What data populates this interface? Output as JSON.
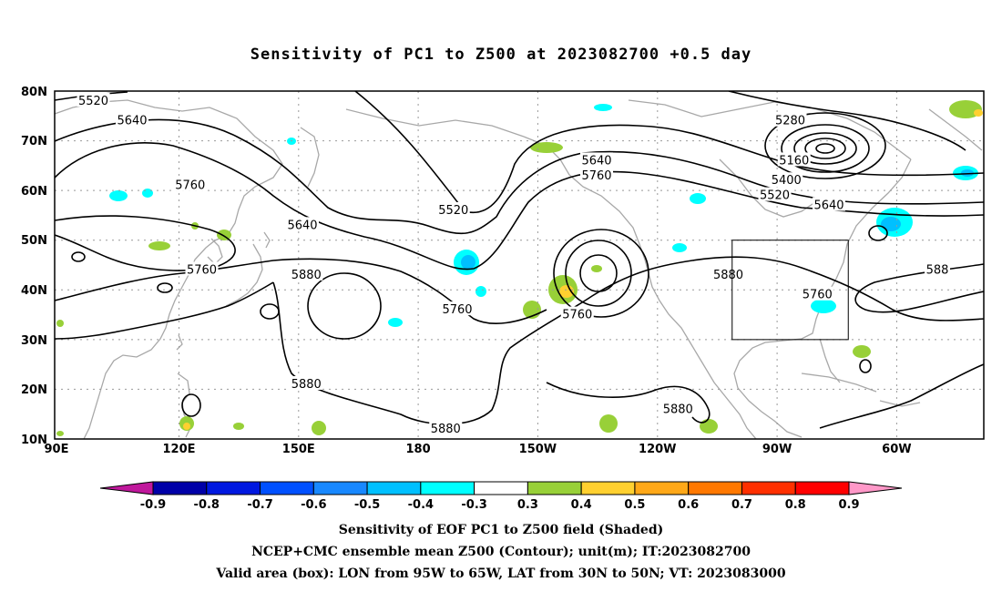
{
  "title": "Sensitivity of PC1 to Z500 at 2023082700 +0.5 day",
  "lat_ticks": [
    "80N",
    "70N",
    "60N",
    "50N",
    "40N",
    "30N",
    "20N",
    "10N"
  ],
  "lon_ticks": [
    "90E",
    "120E",
    "150E",
    "180",
    "150W",
    "120W",
    "90W",
    "60W"
  ],
  "contour_labels": [
    {
      "text": "5520",
      "lon": 100,
      "lat": 78
    },
    {
      "text": "5640",
      "lon": 110,
      "lat": 74
    },
    {
      "text": "5760",
      "lon": 125,
      "lat": 61
    },
    {
      "text": "5640",
      "lon": 154,
      "lat": 53
    },
    {
      "text": "5760",
      "lon": 128,
      "lat": 44
    },
    {
      "text": "5880",
      "lon": 155,
      "lat": 43
    },
    {
      "text": "5520",
      "lon": 193,
      "lat": 56
    },
    {
      "text": "5640",
      "lon": 230,
      "lat": 66
    },
    {
      "text": "5760",
      "lon": 230,
      "lat": 63
    },
    {
      "text": "5760",
      "lon": 194,
      "lat": 36
    },
    {
      "text": "5760",
      "lon": 225,
      "lat": 35
    },
    {
      "text": "5880",
      "lon": 264,
      "lat": 43
    },
    {
      "text": "5280",
      "lon": 280,
      "lat": 74
    },
    {
      "text": "5160",
      "lon": 281,
      "lat": 66
    },
    {
      "text": "5400",
      "lon": 279,
      "lat": 62
    },
    {
      "text": "5520",
      "lon": 276,
      "lat": 59
    },
    {
      "text": "5640",
      "lon": 290,
      "lat": 57
    },
    {
      "text": "5760",
      "lon": 287,
      "lat": 39
    },
    {
      "text": "588",
      "lon": 318,
      "lat": 44
    },
    {
      "text": "5880",
      "lon": 155,
      "lat": 21
    },
    {
      "text": "5880",
      "lon": 191,
      "lat": 12
    },
    {
      "text": "5880",
      "lon": 251,
      "lat": 16
    }
  ],
  "valid_box": {
    "lon_min": 265,
    "lon_max": 295,
    "lat_min": 30,
    "lat_max": 50
  },
  "colorbar": {
    "labels": [
      "-0.9",
      "-0.8",
      "-0.7",
      "-0.6",
      "-0.5",
      "-0.4",
      "-0.3",
      "0.3",
      "0.4",
      "0.5",
      "0.6",
      "0.7",
      "0.8",
      "0.9"
    ],
    "colors": [
      "#c0189c",
      "#0000a8",
      "#0018e0",
      "#0050ff",
      "#1888ff",
      "#00c0ff",
      "#00ffff",
      "#ffffff",
      "#98d038",
      "#ffd030",
      "#ffa818",
      "#ff7800",
      "#ff3000",
      "#ff0000",
      "#ff98c8"
    ]
  },
  "captions": [
    "Sensitivity of EOF PC1 to Z500 field (Shaded)",
    "NCEP+CMC ensemble mean Z500 (Contour); unit(m); IT:2023082700",
    "Valid area (box): LON from 95W to 65W, LAT from 30N to 50N; VT: 2023083000"
  ]
}
